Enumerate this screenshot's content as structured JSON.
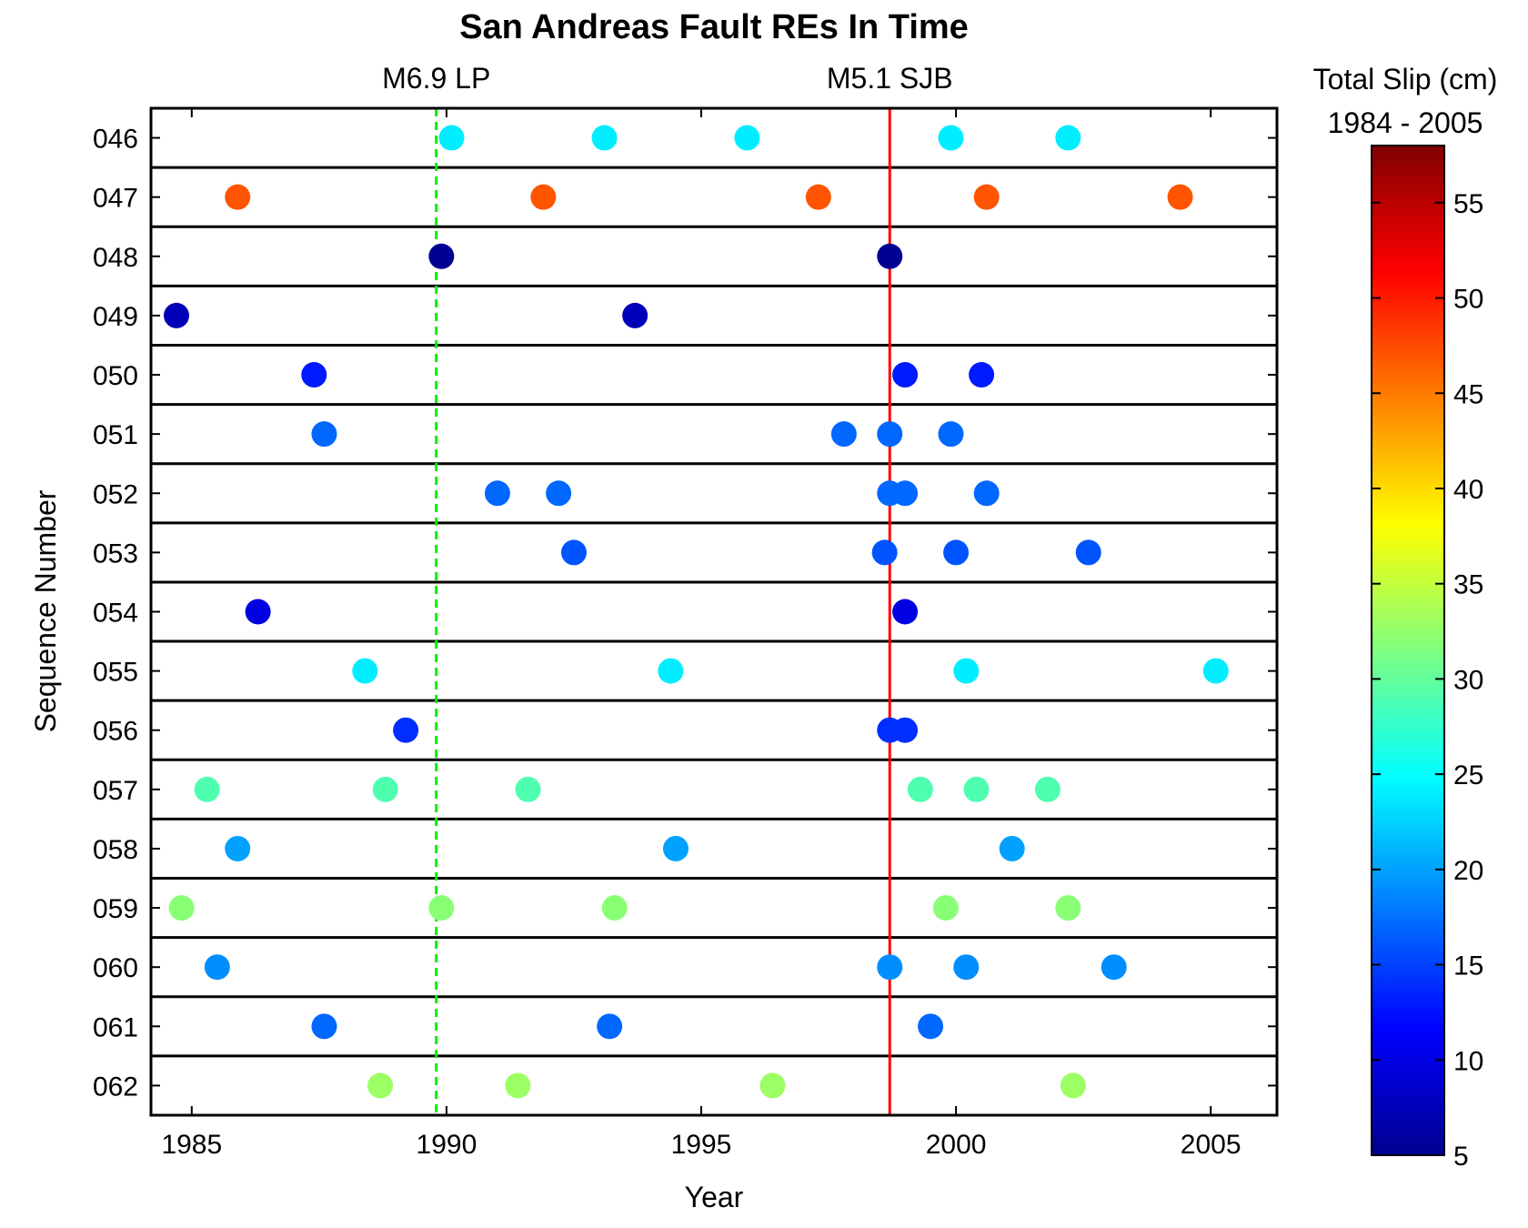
{
  "chart_data": {
    "type": "scatter",
    "title": "San Andreas Fault REs In Time",
    "xlabel": "Year",
    "ylabel": "Sequence Number",
    "xlim": [
      1984.2,
      2006.3
    ],
    "x_ticks": [
      1985,
      1990,
      1995,
      2000,
      2005
    ],
    "grid": false,
    "legend": "colorbar-right",
    "events": [
      {
        "label": "M6.9 LP",
        "year": 1989.8,
        "color": "#00ee00",
        "style": "dashed"
      },
      {
        "label": "M5.1 SJB",
        "year": 1998.7,
        "color": "#ff0000",
        "style": "solid"
      }
    ],
    "colorbar": {
      "title_line1": "Total Slip (cm)",
      "title_line2": "1984 - 2005",
      "range": [
        5,
        58
      ],
      "ticks": [
        5,
        10,
        15,
        20,
        25,
        30,
        35,
        40,
        45,
        50,
        55
      ],
      "colormap": "jet"
    },
    "series": [
      {
        "sequence": "046",
        "slip": 24,
        "events": [
          1990.1,
          1993.1,
          1995.9,
          1999.9,
          2002.2
        ]
      },
      {
        "sequence": "047",
        "slip": 47,
        "events": [
          1985.9,
          1991.9,
          1997.3,
          2000.6,
          2004.4
        ]
      },
      {
        "sequence": "048",
        "slip": 6,
        "events": [
          1989.9,
          1998.7
        ]
      },
      {
        "sequence": "049",
        "slip": 8,
        "events": [
          1984.7,
          1993.7
        ]
      },
      {
        "sequence": "050",
        "slip": 13,
        "events": [
          1987.4,
          1999.0,
          2000.5
        ]
      },
      {
        "sequence": "051",
        "slip": 17,
        "events": [
          1987.6,
          1997.8,
          1998.7,
          1999.9
        ]
      },
      {
        "sequence": "052",
        "slip": 17,
        "events": [
          1991.0,
          1992.2,
          1998.7,
          1999.0,
          2000.6
        ]
      },
      {
        "sequence": "053",
        "slip": 16,
        "events": [
          1992.5,
          1998.6,
          2000.0,
          2002.6
        ]
      },
      {
        "sequence": "054",
        "slip": 10,
        "events": [
          1986.3,
          1999.0
        ]
      },
      {
        "sequence": "055",
        "slip": 24,
        "events": [
          1988.4,
          1994.4,
          2000.2,
          2005.1
        ]
      },
      {
        "sequence": "056",
        "slip": 14,
        "events": [
          1989.2,
          1998.7,
          1999.0
        ]
      },
      {
        "sequence": "057",
        "slip": 29,
        "events": [
          1985.3,
          1988.8,
          1991.6,
          1999.3,
          2000.4,
          2001.8
        ]
      },
      {
        "sequence": "058",
        "slip": 20,
        "events": [
          1985.9,
          1994.5,
          2001.1
        ]
      },
      {
        "sequence": "059",
        "slip": 32,
        "events": [
          1984.8,
          1989.9,
          1993.3,
          1999.8,
          2002.2
        ]
      },
      {
        "sequence": "060",
        "slip": 19,
        "events": [
          1985.5,
          1998.7,
          2000.2,
          2003.1
        ]
      },
      {
        "sequence": "061",
        "slip": 17,
        "events": [
          1987.6,
          1993.2,
          1999.5
        ]
      },
      {
        "sequence": "062",
        "slip": 33,
        "events": [
          1988.7,
          1991.4,
          1996.4,
          2002.3
        ]
      }
    ]
  }
}
